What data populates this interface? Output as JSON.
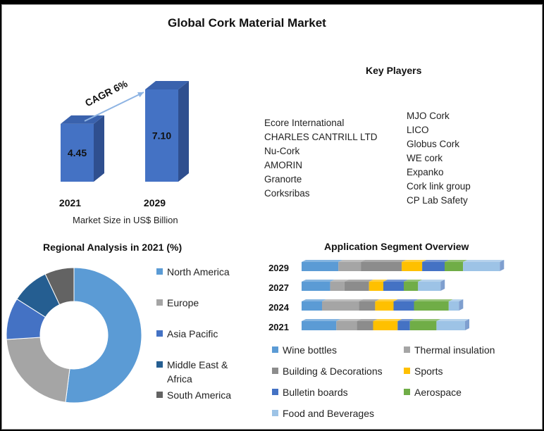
{
  "title": "Global Cork Material Market",
  "colors": {
    "blue_light": "#5b9bd5",
    "blue_pale": "#9dc3e6",
    "gray_light": "#a5a5a5",
    "gray_mid": "#8c8c8c",
    "gold": "#ffc000",
    "blue_dark": "#4472c4",
    "navy": "#255e91",
    "dark_gray": "#636363",
    "green": "#70ad47",
    "bar3d_front": "#4472c4",
    "bar3d_side": "#2f4f8f",
    "bar3d_top": "#3a62ad"
  },
  "chart_data": [
    {
      "type": "bar",
      "categories": [
        "2021",
        "2029"
      ],
      "values": [
        4.45,
        7.1
      ],
      "data_labels": [
        "4.45",
        "7.10"
      ],
      "annotation": "CAGR 6%",
      "xlabel": "Market Size in US$ Billion"
    },
    {
      "type": "pie",
      "title": "Regional Analysis in 2021 (%)",
      "labels": [
        "North America",
        "Europe",
        "Asia Pacific",
        "Middle East & Africa",
        "South America"
      ],
      "values": [
        52,
        22,
        10,
        9,
        7
      ],
      "colors": [
        "#5b9bd5",
        "#a5a5a5",
        "#4472c4",
        "#255e91",
        "#636363"
      ],
      "legend_position": "right",
      "donut": true
    },
    {
      "type": "bar",
      "orientation": "horizontal",
      "stacked": true,
      "title": "Application Segment Overview",
      "categories": [
        "2029",
        "2027",
        "2024",
        "2021"
      ],
      "series": [
        {
          "name": "Wine bottles",
          "color": "#5b9bd5",
          "values": [
            18,
            14,
            10,
            17
          ]
        },
        {
          "name": "Thermal insulation",
          "color": "#a5a5a5",
          "values": [
            11,
            7,
            18,
            10
          ]
        },
        {
          "name": "Building & Decorations",
          "color": "#8c8c8c",
          "values": [
            20,
            12,
            8,
            8
          ]
        },
        {
          "name": "Sports",
          "color": "#ffc000",
          "values": [
            10,
            7,
            9,
            12
          ]
        },
        {
          "name": "Bulletin boards",
          "color": "#4472c4",
          "values": [
            11,
            10,
            10,
            6
          ]
        },
        {
          "name": "Aerospace",
          "color": "#70ad47",
          "values": [
            9,
            7,
            17,
            13
          ]
        },
        {
          "name": "Food and Beverages",
          "color": "#9dc3e6",
          "values": [
            18,
            11,
            5,
            14
          ]
        }
      ]
    }
  ],
  "key_players": {
    "title": "Key Players",
    "column_1": [
      "Ecore International",
      "CHARLES CANTRILL LTD",
      "Nu-Cork",
      "AMORIN",
      "Granorte",
      "Corksribas"
    ],
    "column_2": [
      "MJO Cork",
      "LICO",
      "Globus Cork",
      "WE cork",
      "Expanko",
      "Cork link group",
      "CP Lab Safety"
    ]
  }
}
